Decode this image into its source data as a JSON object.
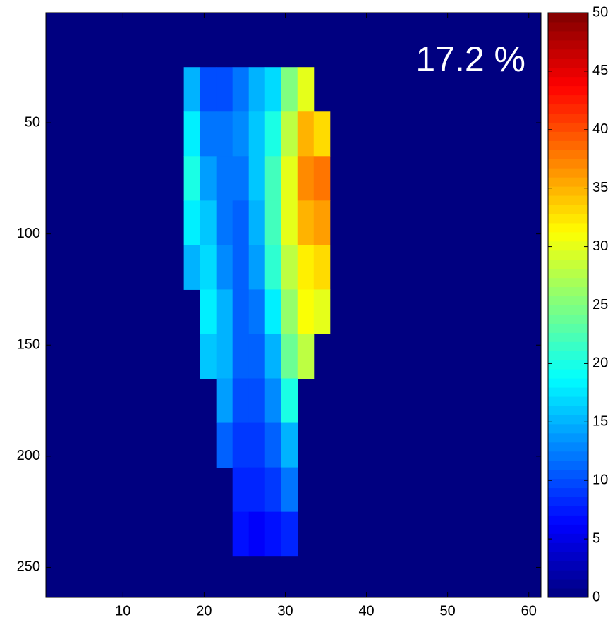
{
  "chart_data": {
    "type": "heatmap",
    "annotation": "17.2 %",
    "xbins": [
      17.5,
      19.5,
      21.5,
      23.5,
      25.5,
      27.5,
      29.5,
      31.5,
      33.5,
      35.5
    ],
    "ybins": [
      25,
      45,
      65,
      85,
      105,
      125,
      145,
      165,
      185,
      205,
      225,
      245
    ],
    "values": [
      [
        15,
        10,
        10,
        12,
        15,
        17,
        25,
        30,
        null
      ],
      [
        18,
        12,
        12,
        13,
        16,
        20,
        28,
        35,
        33
      ],
      [
        20,
        14,
        12,
        12,
        16,
        22,
        30,
        37,
        38
      ],
      [
        18,
        16,
        12,
        11,
        15,
        22,
        30,
        35,
        36
      ],
      [
        15,
        17,
        13,
        11,
        14,
        21,
        28,
        32,
        33
      ],
      [
        null,
        18,
        15,
        11,
        12,
        18,
        26,
        31,
        30
      ],
      [
        null,
        16,
        15,
        11,
        11,
        15,
        24,
        28,
        null
      ],
      [
        null,
        null,
        14,
        10,
        10,
        13,
        20,
        null,
        null
      ],
      [
        null,
        null,
        11,
        9,
        9,
        11,
        15,
        null,
        null
      ],
      [
        null,
        null,
        null,
        8,
        8,
        9,
        12,
        null,
        null
      ],
      [
        null,
        null,
        null,
        7,
        6,
        7,
        8,
        null,
        null
      ]
    ],
    "xlim": [
      0.5,
      61.5
    ],
    "xticks": [
      10,
      20,
      30,
      40,
      50,
      60
    ],
    "ylim": [
      0.5,
      263.5
    ],
    "yticks": [
      50,
      100,
      150,
      200,
      250
    ],
    "y_reversed": true,
    "clim": [
      0,
      50
    ],
    "cticks": [
      0,
      5,
      10,
      15,
      20,
      25,
      30,
      35,
      40,
      45,
      50
    ],
    "colormap": "jet"
  }
}
